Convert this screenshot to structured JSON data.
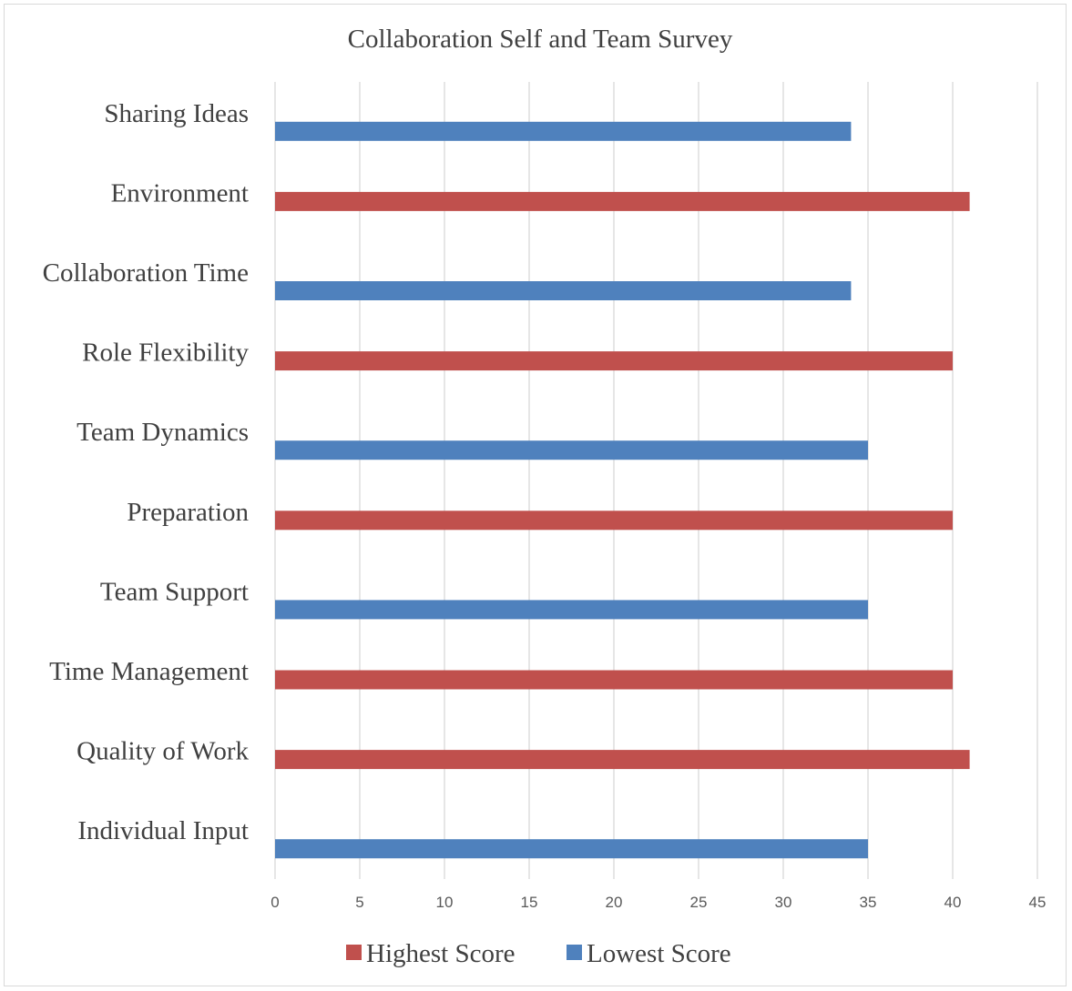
{
  "chart_data": {
    "type": "bar",
    "orientation": "horizontal",
    "title": "Collaboration Self and Team Survey",
    "xlabel": "",
    "ylabel": "",
    "xlim": [
      0,
      45
    ],
    "xticks": [
      0,
      5,
      10,
      15,
      20,
      25,
      30,
      35,
      40,
      45
    ],
    "grid": true,
    "legend_position": "bottom",
    "categories": [
      "Sharing Ideas",
      "Environment",
      "Collaboration Time",
      "Role Flexibility",
      "Team Dynamics",
      "Preparation",
      "Team Support",
      "Time Management",
      "Quality of Work",
      "Individual Input"
    ],
    "series": [
      {
        "name": "Highest Score",
        "color": "#c0504d",
        "values": [
          null,
          41,
          null,
          40,
          null,
          40,
          null,
          40,
          41,
          null
        ]
      },
      {
        "name": "Lowest Score",
        "color": "#4f81bd",
        "values": [
          34,
          null,
          34,
          null,
          35,
          null,
          35,
          null,
          null,
          35
        ]
      }
    ]
  }
}
